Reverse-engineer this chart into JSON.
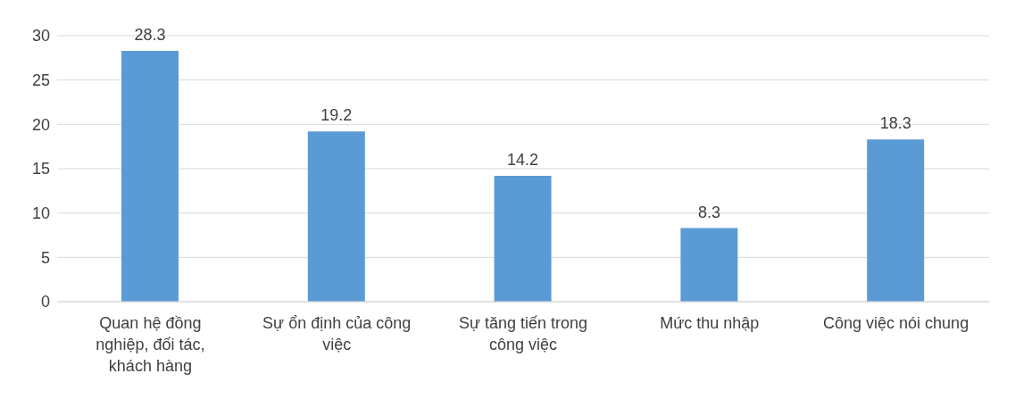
{
  "chart_data": {
    "type": "bar",
    "categories": [
      "Quan hệ đồng nghiệp, đối tác, khách hàng",
      "Sự ổn định của công việc",
      "Sự tăng tiến trong công việc",
      "Mức thu nhập",
      "Công việc nói chung"
    ],
    "values": [
      28.3,
      19.2,
      14.2,
      8.3,
      18.3
    ],
    "color": "#5b9bd5",
    "ylim": [
      0,
      30
    ],
    "yticks": [
      0,
      5,
      10,
      15,
      20,
      25,
      30
    ],
    "grid": "y",
    "data_labels": true,
    "legend": false
  }
}
